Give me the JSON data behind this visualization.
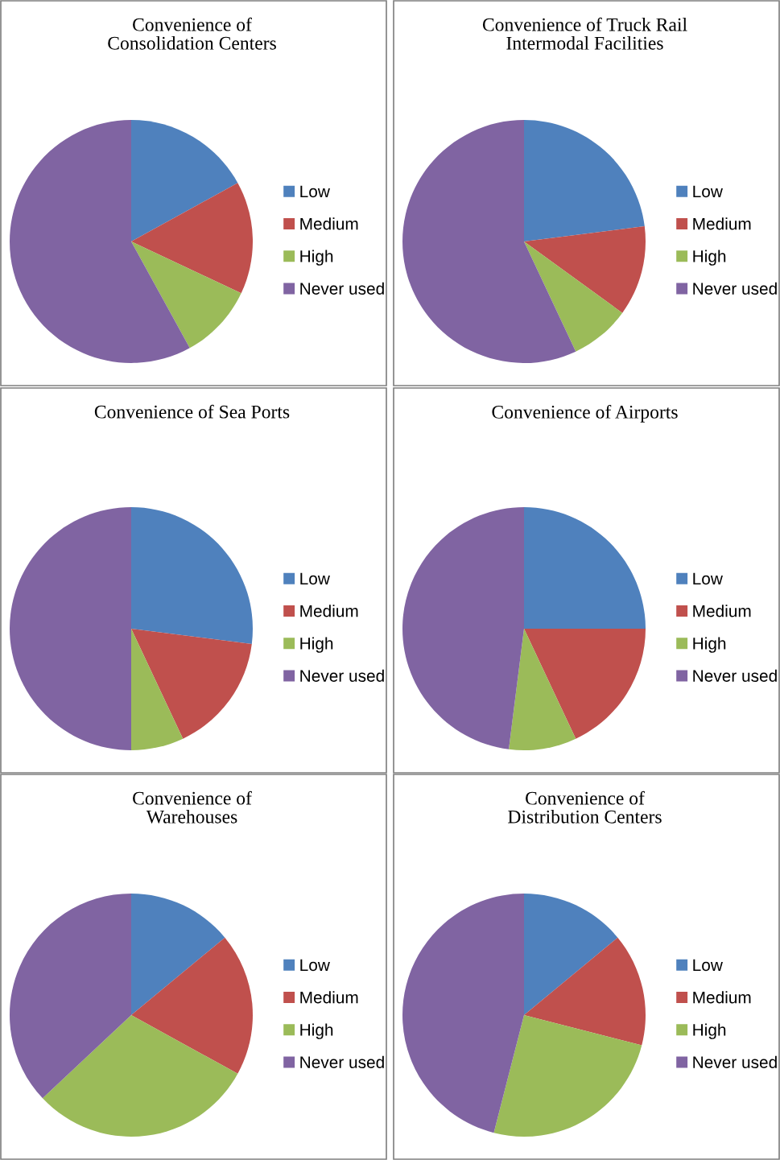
{
  "chart_data": [
    {
      "type": "pie",
      "title": "Convenience of\nConsolidation Centers",
      "categories": [
        "Low",
        "Medium",
        "High",
        "Never used"
      ],
      "values": [
        17,
        15,
        10,
        58
      ],
      "colors": [
        "#4f81bd",
        "#c0504d",
        "#9bbb59",
        "#8064a2"
      ],
      "legend": "right"
    },
    {
      "type": "pie",
      "title": "Convenience of Truck Rail\nIntermodal Facilities",
      "categories": [
        "Low",
        "Medium",
        "High",
        "Never used"
      ],
      "values": [
        23,
        12,
        8,
        57
      ],
      "colors": [
        "#4f81bd",
        "#c0504d",
        "#9bbb59",
        "#8064a2"
      ],
      "legend": "right"
    },
    {
      "type": "pie",
      "title": "Convenience of Sea Ports",
      "categories": [
        "Low",
        "Medium",
        "High",
        "Never used"
      ],
      "values": [
        27,
        16,
        7,
        50
      ],
      "colors": [
        "#4f81bd",
        "#c0504d",
        "#9bbb59",
        "#8064a2"
      ],
      "legend": "right"
    },
    {
      "type": "pie",
      "title": "Convenience of Airports",
      "categories": [
        "Low",
        "Medium",
        "High",
        "Never used"
      ],
      "values": [
        25,
        18,
        9,
        48
      ],
      "colors": [
        "#4f81bd",
        "#c0504d",
        "#9bbb59",
        "#8064a2"
      ],
      "legend": "right"
    },
    {
      "type": "pie",
      "title": "Convenience of\nWarehouses",
      "categories": [
        "Low",
        "Medium",
        "High",
        "Never used"
      ],
      "values": [
        14,
        19,
        30,
        37
      ],
      "colors": [
        "#4f81bd",
        "#c0504d",
        "#9bbb59",
        "#8064a2"
      ],
      "legend": "right"
    },
    {
      "type": "pie",
      "title": "Convenience of\nDistribution Centers",
      "categories": [
        "Low",
        "Medium",
        "High",
        "Never used"
      ],
      "values": [
        14,
        15,
        25,
        46
      ],
      "colors": [
        "#4f81bd",
        "#c0504d",
        "#9bbb59",
        "#8064a2"
      ],
      "legend": "right"
    }
  ]
}
